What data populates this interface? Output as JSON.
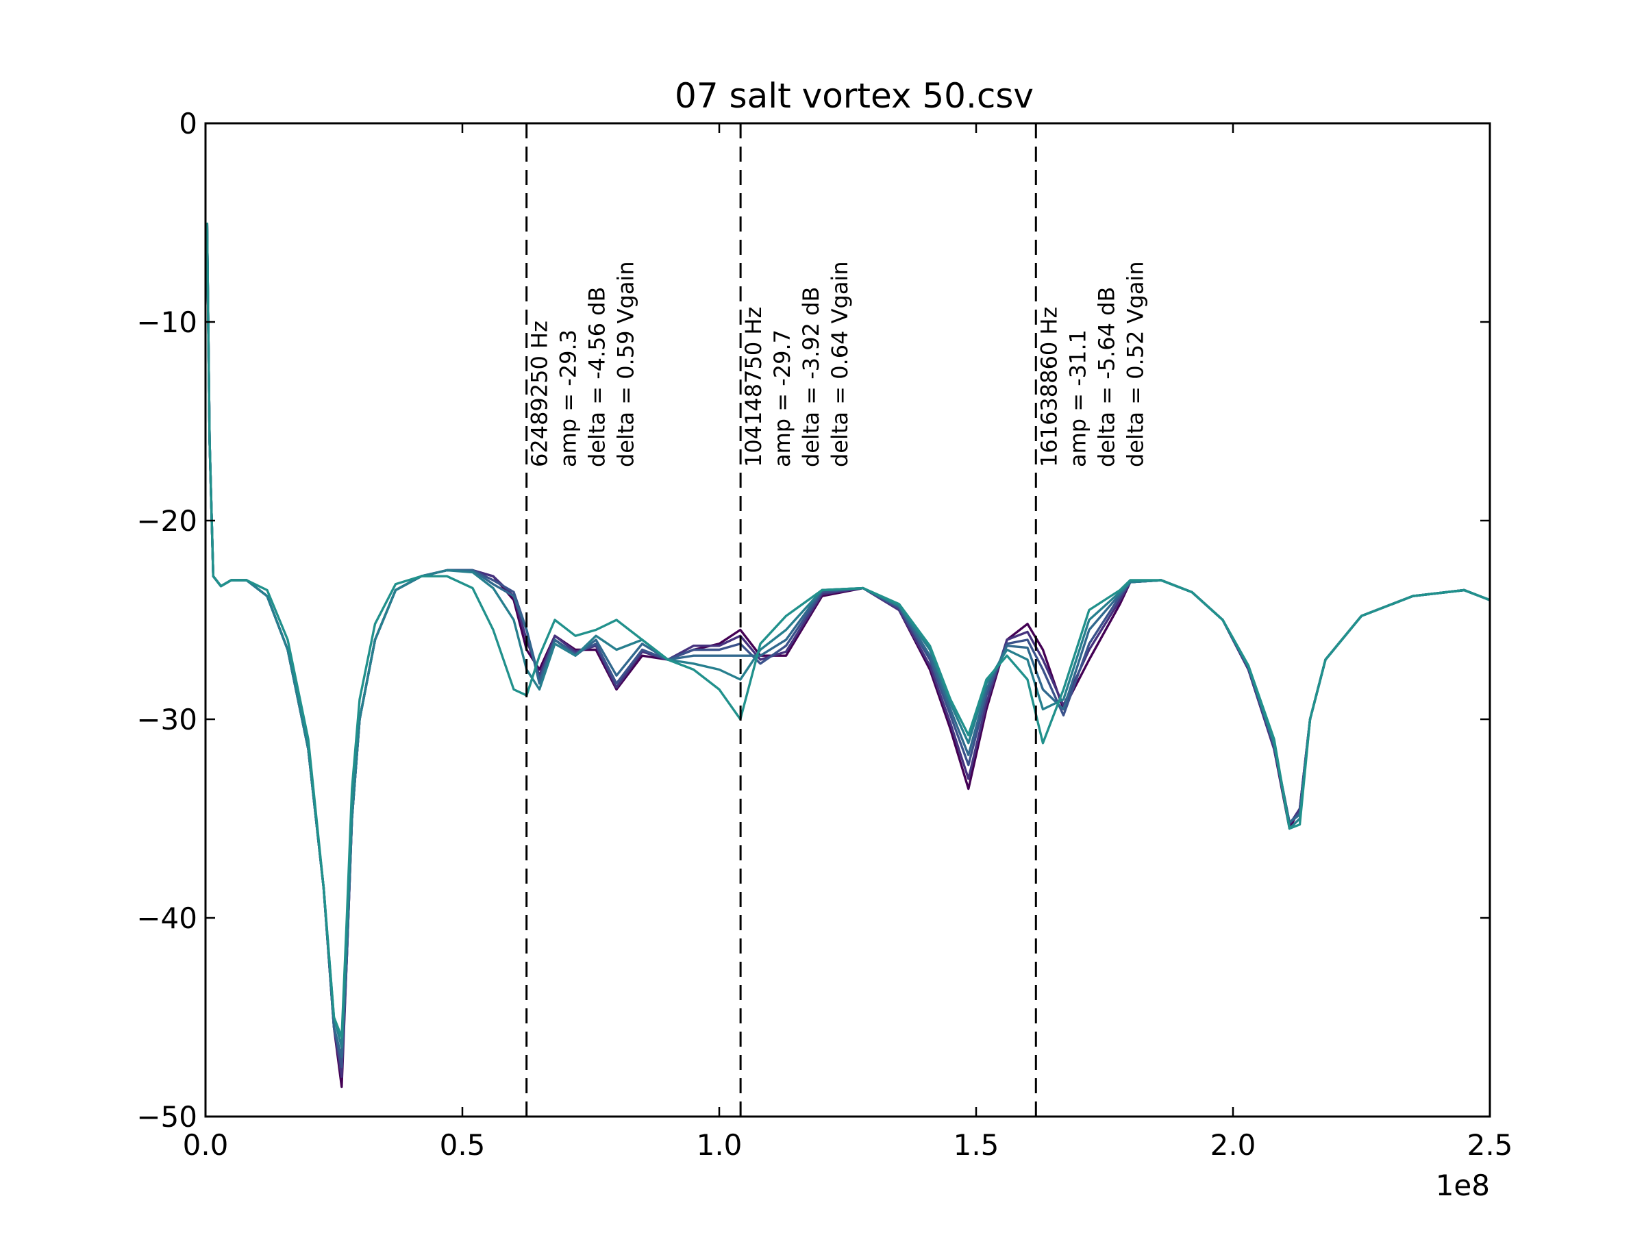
{
  "chart_data": {
    "type": "line",
    "title": "07 salt vortex 50.csv",
    "xlabel": "",
    "ylabel": "",
    "x_offset_label": "1e8",
    "xlim": [
      0,
      250000000
    ],
    "ylim": [
      -50,
      0
    ],
    "x_ticks": [
      0,
      50000000,
      100000000,
      150000000,
      200000000,
      250000000
    ],
    "x_tick_labels": [
      "0.0",
      "0.5",
      "1.0",
      "1.5",
      "2.0",
      "2.5"
    ],
    "y_ticks": [
      0,
      -10,
      -20,
      -30,
      -40,
      -50
    ],
    "y_tick_labels": [
      "0",
      "−10",
      "−20",
      "−30",
      "−40",
      "−50"
    ],
    "grid": false,
    "legend": "none",
    "colors": [
      "#440154",
      "#46327e",
      "#3b528b",
      "#31688e",
      "#277f8e",
      "#21918c"
    ],
    "x": [
      300000,
      800000,
      1500000,
      3000000,
      5000000,
      8000000,
      12000000,
      16000000,
      20000000,
      23000000,
      25000000,
      26500000,
      27500000,
      28500000,
      30000000,
      33000000,
      37000000,
      42000000,
      47000000,
      52000000,
      56000000,
      60000000,
      62500000,
      65000000,
      68000000,
      72000000,
      76000000,
      80000000,
      85000000,
      90000000,
      95000000,
      100000000,
      104100000,
      108000000,
      113000000,
      120000000,
      128000000,
      135000000,
      141000000,
      145000000,
      148500000,
      152000000,
      156000000,
      160000000,
      163000000,
      167000000,
      172000000,
      178000000,
      180000000,
      186000000,
      192000000,
      198000000,
      203000000,
      208000000,
      211000000,
      213000000,
      215000000,
      218000000,
      225000000,
      235000000,
      245000000,
      250000000
    ],
    "series": [
      {
        "values": [
          -5.0,
          -16.0,
          -22.8,
          -23.3,
          -23.0,
          -23.0,
          -23.8,
          -26.5,
          -31.5,
          -38.5,
          -45.5,
          -48.5,
          -42.0,
          -35.0,
          -30.0,
          -26.0,
          -23.5,
          -22.8,
          -22.5,
          -22.5,
          -22.8,
          -24.0,
          -26.5,
          -27.5,
          -25.8,
          -26.5,
          -26.5,
          -28.5,
          -26.8,
          -27.0,
          -26.5,
          -26.2,
          -25.5,
          -26.8,
          -26.8,
          -23.8,
          -23.4,
          -24.5,
          -27.5,
          -30.5,
          -33.5,
          -29.5,
          -26.0,
          -25.2,
          -26.5,
          -29.5,
          -27.0,
          -24.2,
          -23.1,
          -23.0,
          -23.6,
          -25.0,
          -27.5,
          -31.5,
          -35.5,
          -34.5,
          -30.0,
          -27.0,
          -24.8,
          -23.8,
          -23.5,
          -24.0
        ]
      },
      {
        "values": [
          -5.0,
          -16.0,
          -22.8,
          -23.3,
          -23.0,
          -23.0,
          -23.8,
          -26.5,
          -31.5,
          -38.5,
          -45.5,
          -48.0,
          -42.0,
          -35.0,
          -30.0,
          -26.0,
          -23.5,
          -22.8,
          -22.5,
          -22.5,
          -22.8,
          -23.8,
          -26.0,
          -27.8,
          -25.8,
          -26.6,
          -26.3,
          -28.4,
          -26.6,
          -27.0,
          -26.3,
          -26.3,
          -25.8,
          -27.0,
          -26.6,
          -23.7,
          -23.4,
          -24.5,
          -27.3,
          -30.2,
          -33.0,
          -29.2,
          -26.0,
          -25.6,
          -27.0,
          -29.3,
          -26.5,
          -24.0,
          -23.1,
          -23.0,
          -23.6,
          -25.0,
          -27.5,
          -31.5,
          -35.3,
          -34.5,
          -30.0,
          -27.0,
          -24.8,
          -23.8,
          -23.5,
          -24.0
        ]
      },
      {
        "values": [
          -5.0,
          -16.0,
          -22.8,
          -23.3,
          -23.0,
          -23.0,
          -23.8,
          -26.5,
          -31.5,
          -38.5,
          -45.5,
          -47.5,
          -42.0,
          -35.0,
          -30.0,
          -26.0,
          -23.5,
          -22.8,
          -22.5,
          -22.5,
          -23.0,
          -23.6,
          -25.5,
          -28.0,
          -26.0,
          -26.7,
          -26.2,
          -28.2,
          -26.5,
          -27.0,
          -26.5,
          -26.5,
          -26.2,
          -27.2,
          -26.3,
          -23.6,
          -23.4,
          -24.4,
          -27.0,
          -29.8,
          -32.3,
          -28.8,
          -26.2,
          -26.0,
          -27.5,
          -29.8,
          -26.2,
          -23.8,
          -23.1,
          -23.0,
          -23.6,
          -25.0,
          -27.4,
          -31.3,
          -35.2,
          -34.7,
          -30.0,
          -27.0,
          -24.8,
          -23.8,
          -23.5,
          -24.0
        ]
      },
      {
        "values": [
          -5.0,
          -16.0,
          -22.8,
          -23.3,
          -23.0,
          -23.0,
          -23.8,
          -26.5,
          -31.5,
          -38.5,
          -45.5,
          -47.0,
          -41.5,
          -35.0,
          -30.0,
          -26.0,
          -23.5,
          -22.8,
          -22.5,
          -22.5,
          -23.2,
          -23.8,
          -25.5,
          -28.2,
          -26.0,
          -26.8,
          -26.0,
          -27.8,
          -26.2,
          -27.0,
          -26.8,
          -26.8,
          -26.8,
          -26.8,
          -26.0,
          -23.5,
          -23.4,
          -24.3,
          -26.8,
          -29.5,
          -31.8,
          -28.5,
          -26.3,
          -26.4,
          -28.5,
          -29.5,
          -25.5,
          -23.7,
          -23.1,
          -23.0,
          -23.6,
          -25.0,
          -27.4,
          -31.3,
          -35.2,
          -34.8,
          -30.0,
          -27.0,
          -24.8,
          -23.8,
          -23.5,
          -24.0
        ]
      },
      {
        "values": [
          -5.0,
          -16.0,
          -22.8,
          -23.3,
          -23.0,
          -23.0,
          -23.8,
          -26.5,
          -31.5,
          -38.5,
          -45.0,
          -46.5,
          -41.0,
          -35.0,
          -30.0,
          -26.0,
          -23.5,
          -22.8,
          -22.5,
          -22.6,
          -23.4,
          -25.0,
          -27.5,
          -28.5,
          -26.2,
          -26.8,
          -25.8,
          -26.5,
          -26.0,
          -27.0,
          -27.2,
          -27.5,
          -28.0,
          -26.5,
          -25.5,
          -23.5,
          -23.4,
          -24.3,
          -26.5,
          -29.2,
          -31.2,
          -28.2,
          -26.5,
          -27.0,
          -29.5,
          -29.0,
          -25.0,
          -23.6,
          -23.1,
          -23.0,
          -23.6,
          -25.0,
          -27.3,
          -31.2,
          -35.5,
          -35.0,
          -30.0,
          -27.0,
          -24.8,
          -23.8,
          -23.5,
          -24.0
        ]
      },
      {
        "values": [
          -5.0,
          -16.0,
          -22.8,
          -23.3,
          -23.0,
          -23.0,
          -23.5,
          -26.0,
          -31.0,
          -38.5,
          -45.0,
          -46.0,
          -40.0,
          -33.5,
          -29.0,
          -25.2,
          -23.2,
          -22.8,
          -22.8,
          -23.4,
          -25.5,
          -28.5,
          -28.8,
          -26.8,
          -25.0,
          -25.8,
          -25.5,
          -25.0,
          -26.0,
          -27.0,
          -27.5,
          -28.5,
          -30.0,
          -26.2,
          -24.8,
          -23.5,
          -23.4,
          -24.2,
          -26.3,
          -29.0,
          -30.8,
          -28.0,
          -26.8,
          -28.0,
          -31.2,
          -28.5,
          -24.5,
          -23.5,
          -23.0,
          -23.0,
          -23.6,
          -25.0,
          -27.3,
          -31.0,
          -35.5,
          -35.3,
          -30.0,
          -27.0,
          -24.8,
          -23.8,
          -23.5,
          -24.0
        ]
      }
    ],
    "vlines": [
      {
        "x": 62489250,
        "label": [
          "62489250 Hz",
          "amp = -29.3",
          "delta = -4.56 dB",
          "delta = 0.59 Vgain"
        ]
      },
      {
        "x": 104148750,
        "label": [
          "104148750 Hz",
          "amp = -29.7",
          "delta = -3.92 dB",
          "delta = 0.64 Vgain"
        ]
      },
      {
        "x": 161638860,
        "label": [
          "161638860 Hz",
          "amp = -31.1",
          "delta = -5.64 dB",
          "delta = 0.52 Vgain"
        ]
      }
    ]
  }
}
